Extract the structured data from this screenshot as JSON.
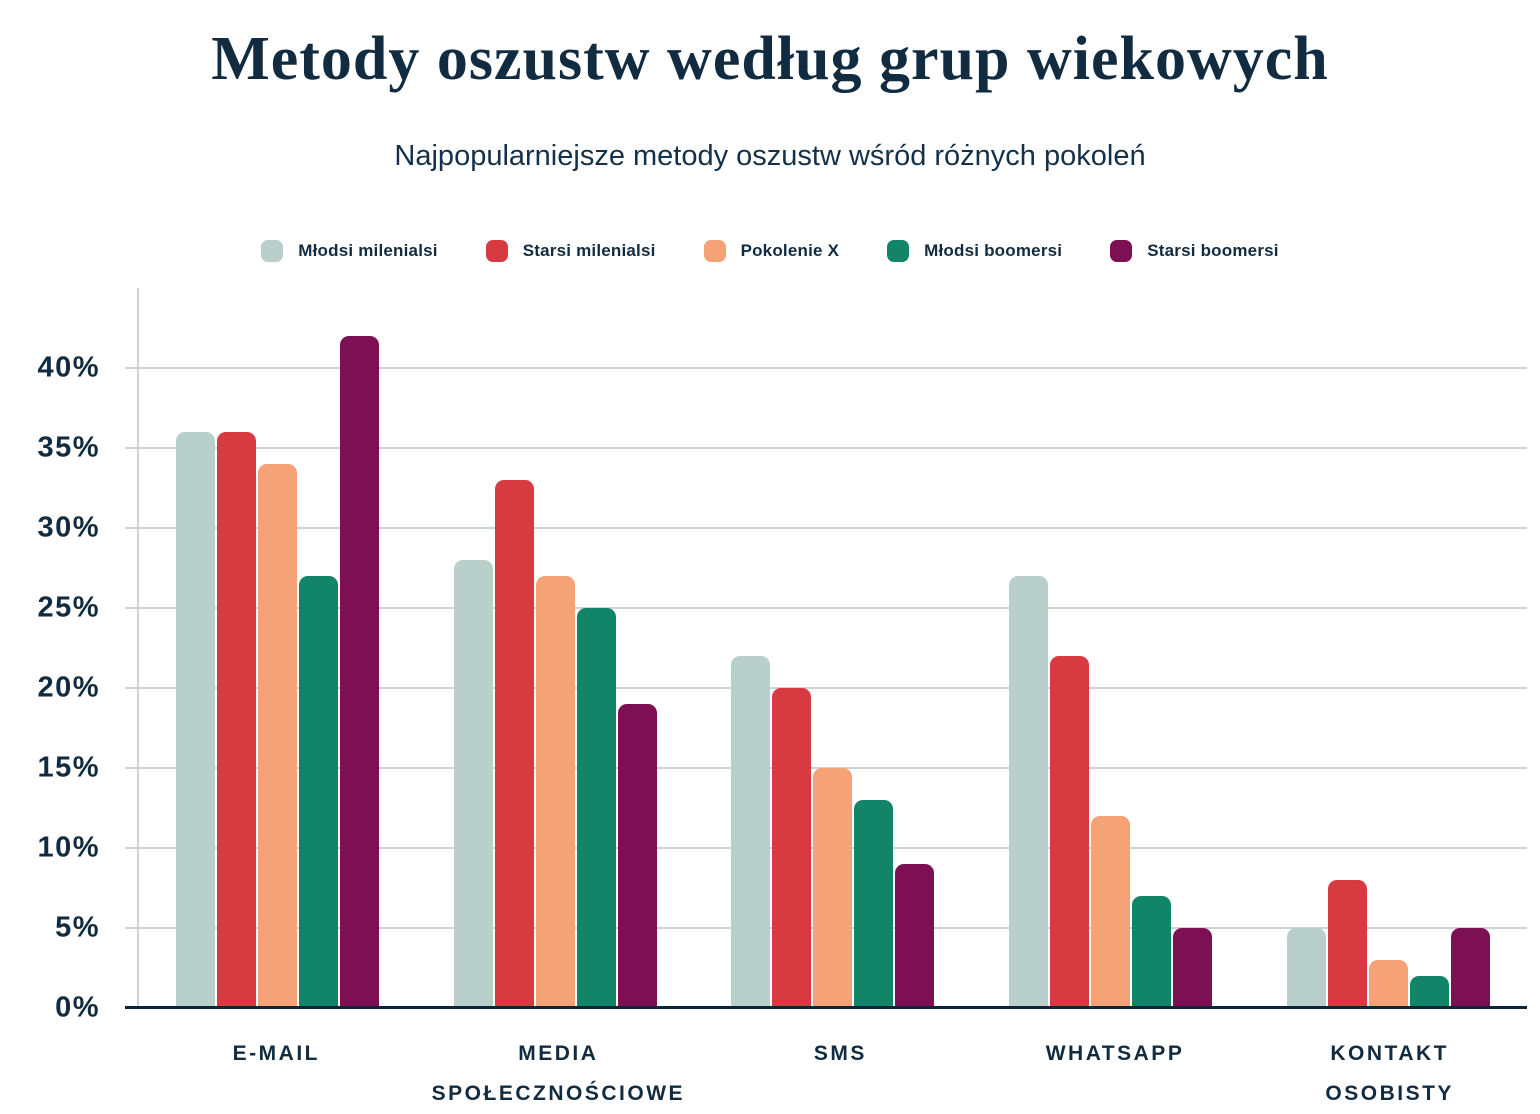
{
  "page": {
    "title": "Metody oszustw według grup wiekowych",
    "subtitle": "Najpopularniejsze metody oszustw wśród różnych pokoleń"
  },
  "colors": {
    "background": "#ffffff",
    "text_navy": "#112b40",
    "gridline": "#cdd2d6",
    "axis_line": "#0e2537"
  },
  "chart_data": {
    "type": "bar",
    "title": "Metody oszustw według grup wiekowych",
    "subtitle": "Najpopularniejsze metody oszustw wśród różnych pokoleń",
    "categories": [
      "E-MAIL",
      "MEDIA SPOŁECZNOŚCIOWE",
      "SMS",
      "WHATSAPP",
      "KONTAKT OSOBISTY"
    ],
    "series": [
      {
        "name": "Młodsi milenialsi",
        "color": "#b8cfcc",
        "values": [
          36,
          28,
          22,
          27,
          5
        ]
      },
      {
        "name": "Starsi milenialsi",
        "color": "#d83a42",
        "values": [
          36,
          33,
          20,
          22,
          8
        ]
      },
      {
        "name": "Pokolenie X",
        "color": "#f4a276",
        "values": [
          34,
          27,
          15,
          12,
          3
        ]
      },
      {
        "name": "Młodsi boomersi",
        "color": "#128568",
        "values": [
          27,
          25,
          13,
          7,
          2
        ]
      },
      {
        "name": "Starsi boomersi",
        "color": "#7d1053",
        "values": [
          42,
          19,
          9,
          5,
          5
        ]
      }
    ],
    "xlabel": "",
    "ylabel": "",
    "ylim": [
      0,
      45
    ],
    "yticks": [
      0,
      5,
      10,
      15,
      20,
      25,
      30,
      35,
      40
    ],
    "ytick_suffix": "%",
    "grid": true,
    "legend_position": "top"
  }
}
